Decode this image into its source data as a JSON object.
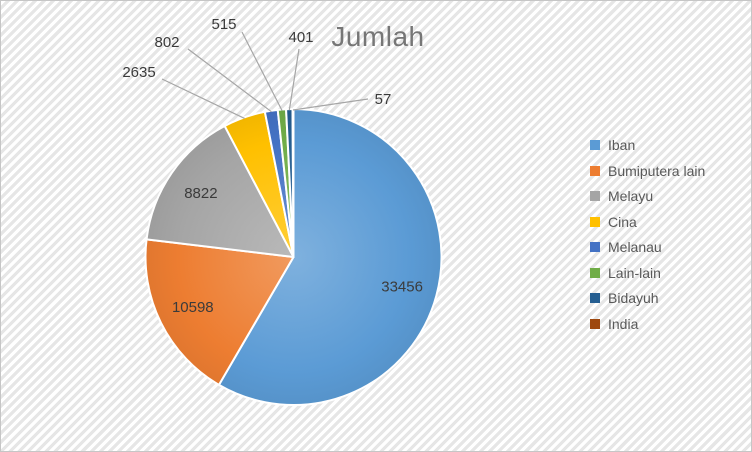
{
  "chart_data": {
    "type": "pie",
    "title": "Jumlah",
    "categories": [
      "Iban",
      "Bumiputera lain",
      "Melayu",
      "Cina",
      "Melanau",
      "Lain-lain",
      "Bidayuh",
      "India"
    ],
    "values": [
      33456,
      10598,
      8822,
      2635,
      802,
      515,
      401,
      57
    ],
    "colors": [
      "#5b9bd5",
      "#ed7d31",
      "#a5a5a5",
      "#ffc000",
      "#4472c4",
      "#70ad47",
      "#255e91",
      "#9e480e"
    ],
    "data_labels": [
      "33456",
      "10598",
      "8822",
      "2635",
      "802",
      "515",
      "401",
      "57"
    ],
    "legend_position": "right",
    "start_angle": 0,
    "direction": "clockwise",
    "grid": false
  },
  "style_colors": {
    "title_color": "#767676",
    "label_color": "#3b3b3b",
    "legend_text_color": "#595959",
    "leader_line_color": "#a6a6a6",
    "slice_border_color": "#ffffff",
    "background_stripe_color": "#e6e6e6",
    "frame_border_color": "#c6c6c6"
  }
}
